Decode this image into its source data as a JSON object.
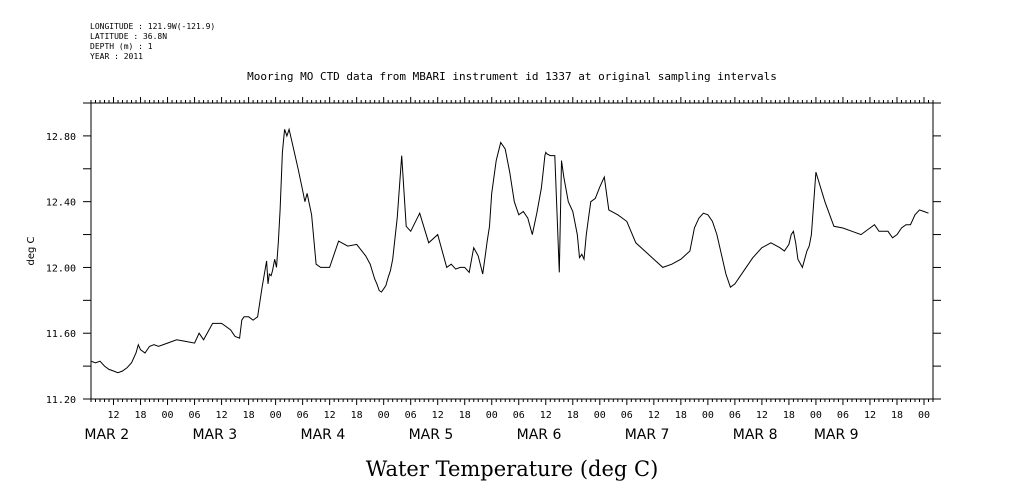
{
  "meta": {
    "longitude": "LONGITUDE : 121.9W(-121.9)",
    "latitude": "LATITUDE : 36.8N",
    "depth": "DEPTH (m) : 1",
    "year": "YEAR : 2011"
  },
  "chart_data": {
    "type": "line",
    "title": "Mooring MO CTD data from MBARI instrument id 1337 at original sampling intervals",
    "ylabel": "deg C",
    "bottom_title": "Water Temperature (deg C)",
    "ylim": [
      11.2,
      13.0
    ],
    "yticks": [
      "11.20",
      "11.60",
      "12.00",
      "12.40",
      "12.80"
    ],
    "xlim_hours": [
      7,
      194
    ],
    "hour_labels": [
      {
        "h": 12,
        "label": "12"
      },
      {
        "h": 18,
        "label": "18"
      },
      {
        "h": 24,
        "label": "00"
      },
      {
        "h": 30,
        "label": "06"
      },
      {
        "h": 36,
        "label": "12"
      },
      {
        "h": 42,
        "label": "18"
      },
      {
        "h": 48,
        "label": "00"
      },
      {
        "h": 54,
        "label": "06"
      },
      {
        "h": 60,
        "label": "12"
      },
      {
        "h": 66,
        "label": "18"
      },
      {
        "h": 72,
        "label": "00"
      },
      {
        "h": 78,
        "label": "06"
      },
      {
        "h": 84,
        "label": "12"
      },
      {
        "h": 90,
        "label": "18"
      },
      {
        "h": 96,
        "label": "00"
      },
      {
        "h": 102,
        "label": "06"
      },
      {
        "h": 108,
        "label": "12"
      },
      {
        "h": 114,
        "label": "18"
      },
      {
        "h": 120,
        "label": "00"
      },
      {
        "h": 126,
        "label": "06"
      },
      {
        "h": 132,
        "label": "12"
      },
      {
        "h": 138,
        "label": "18"
      },
      {
        "h": 144,
        "label": "00"
      },
      {
        "h": 150,
        "label": "06"
      },
      {
        "h": 156,
        "label": "12"
      },
      {
        "h": 162,
        "label": "18"
      },
      {
        "h": 168,
        "label": "00"
      },
      {
        "h": 174,
        "label": "06"
      },
      {
        "h": 180,
        "label": "12"
      },
      {
        "h": 186,
        "label": "18"
      },
      {
        "h": 192,
        "label": "00"
      }
    ],
    "month_labels": [
      {
        "h": 10.5,
        "label": "MAR  2"
      },
      {
        "h": 34.5,
        "label": "MAR  3"
      },
      {
        "h": 58.5,
        "label": "MAR  4"
      },
      {
        "h": 82.5,
        "label": "MAR  5"
      },
      {
        "h": 106.5,
        "label": "MAR  6"
      },
      {
        "h": 130.5,
        "label": "MAR  7"
      },
      {
        "h": 154.5,
        "label": "MAR  8"
      },
      {
        "h": 172.5,
        "label": "MAR  9"
      }
    ],
    "series": [
      {
        "x": [
          7,
          8,
          9,
          10,
          11,
          12,
          13,
          14,
          15,
          16,
          17,
          17.5,
          18,
          19,
          20,
          21,
          22,
          24,
          26,
          28,
          30,
          31,
          32,
          34,
          36,
          38,
          38.5,
          39,
          40,
          40.5,
          41,
          42,
          43,
          44,
          45,
          46,
          46.3,
          46.6,
          47,
          47.3,
          47.8,
          48.2,
          48.6,
          49,
          49.5,
          50,
          50.5,
          51,
          52,
          53,
          54,
          54.5,
          55,
          56,
          57,
          58,
          60,
          62,
          64,
          66,
          68,
          69,
          70,
          70.5,
          71,
          71.5,
          72,
          72.5,
          73,
          73.5,
          74,
          75,
          76,
          77,
          78,
          80,
          82,
          84,
          85,
          86,
          87,
          88,
          89,
          90,
          91,
          92,
          93,
          94,
          94.5,
          95,
          95.5,
          96,
          97,
          98,
          99,
          100,
          101,
          102,
          103,
          104,
          105,
          106,
          107,
          107.5,
          107.8,
          108,
          108.3,
          109,
          110,
          111,
          111.5,
          112,
          113,
          114,
          115,
          115.5,
          116,
          116.5,
          117,
          117.5,
          118,
          119,
          120,
          121,
          122,
          124,
          126,
          128,
          130,
          132,
          134,
          136,
          138,
          140,
          141,
          142,
          143,
          144,
          145,
          146,
          147,
          148,
          149,
          150,
          152,
          154,
          156,
          158,
          160,
          161,
          162,
          162.5,
          163,
          163.5,
          164,
          165,
          166,
          166.5,
          167,
          168,
          170,
          172,
          174,
          176,
          178,
          180,
          181,
          182,
          183,
          184,
          185,
          186,
          187,
          188,
          189,
          190,
          191,
          192,
          193
        ],
        "y": [
          11.43,
          11.42,
          11.43,
          11.4,
          11.38,
          11.37,
          11.36,
          11.37,
          11.39,
          11.42,
          11.48,
          11.53,
          11.5,
          11.48,
          11.52,
          11.53,
          11.52,
          11.54,
          11.56,
          11.55,
          11.54,
          11.6,
          11.56,
          11.66,
          11.66,
          11.62,
          11.6,
          11.58,
          11.57,
          11.68,
          11.7,
          11.7,
          11.68,
          11.7,
          11.88,
          12.04,
          11.9,
          11.96,
          11.95,
          11.98,
          12.05,
          12.0,
          12.15,
          12.35,
          12.7,
          12.84,
          12.8,
          12.84,
          12.72,
          12.6,
          12.47,
          12.4,
          12.45,
          12.32,
          12.02,
          12.0,
          12.0,
          12.16,
          12.13,
          12.14,
          12.07,
          12.02,
          11.93,
          11.9,
          11.86,
          11.85,
          11.87,
          11.89,
          11.94,
          11.98,
          12.05,
          12.3,
          12.68,
          12.25,
          12.22,
          12.33,
          12.15,
          12.2,
          12.1,
          12.0,
          12.02,
          11.99,
          12.0,
          12.0,
          11.97,
          12.12,
          12.07,
          11.96,
          12.06,
          12.16,
          12.25,
          12.45,
          12.65,
          12.76,
          12.72,
          12.58,
          12.4,
          12.32,
          12.34,
          12.3,
          12.2,
          12.33,
          12.48,
          12.6,
          12.68,
          12.7,
          12.69,
          12.68,
          12.68,
          11.97,
          12.65,
          12.55,
          12.4,
          12.34,
          12.2,
          12.06,
          12.08,
          12.05,
          12.2,
          12.3,
          12.4,
          12.42,
          12.49,
          12.55,
          12.35,
          12.32,
          12.28,
          12.15,
          12.1,
          12.05,
          12.0,
          12.02,
          12.05,
          12.1,
          12.24,
          12.3,
          12.33,
          12.32,
          12.28,
          12.2,
          12.08,
          11.96,
          11.88,
          11.9,
          11.98,
          12.06,
          12.12,
          12.15,
          12.12,
          12.1,
          12.14,
          12.2,
          12.22,
          12.15,
          12.05,
          12.0,
          12.1,
          12.13,
          12.2,
          12.58,
          12.4,
          12.25,
          12.24,
          12.22,
          12.2,
          12.24,
          12.26,
          12.22,
          12.22,
          12.22,
          12.18,
          12.2,
          12.24,
          12.26,
          12.26,
          12.32,
          12.35,
          12.34,
          12.33
        ]
      }
    ]
  }
}
